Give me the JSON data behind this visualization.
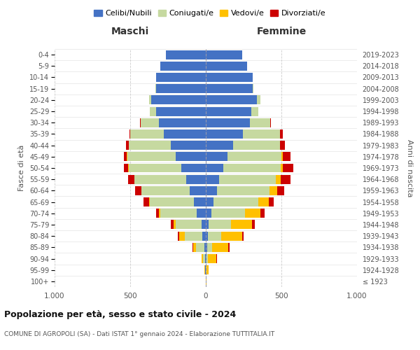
{
  "age_groups": [
    "100+",
    "95-99",
    "90-94",
    "85-89",
    "80-84",
    "75-79",
    "70-74",
    "65-69",
    "60-64",
    "55-59",
    "50-54",
    "45-49",
    "40-44",
    "35-39",
    "30-34",
    "25-29",
    "20-24",
    "15-19",
    "10-14",
    "5-9",
    "0-4"
  ],
  "birth_years": [
    "≤ 1923",
    "1924-1928",
    "1929-1933",
    "1934-1938",
    "1939-1943",
    "1944-1948",
    "1949-1953",
    "1954-1958",
    "1959-1963",
    "1964-1968",
    "1969-1973",
    "1974-1978",
    "1979-1983",
    "1984-1988",
    "1989-1993",
    "1994-1998",
    "1999-2003",
    "2004-2008",
    "2009-2013",
    "2014-2018",
    "2019-2023"
  ],
  "maschi": {
    "celibi": [
      2,
      3,
      5,
      10,
      25,
      30,
      60,
      80,
      105,
      130,
      160,
      200,
      230,
      280,
      310,
      330,
      360,
      330,
      330,
      300,
      265
    ],
    "coniugati": [
      0,
      2,
      15,
      55,
      115,
      170,
      240,
      290,
      320,
      340,
      350,
      320,
      280,
      220,
      120,
      40,
      15,
      5,
      0,
      0,
      0
    ],
    "vedovi": [
      0,
      2,
      8,
      20,
      35,
      15,
      10,
      5,
      3,
      2,
      2,
      1,
      1,
      1,
      0,
      0,
      0,
      0,
      0,
      0,
      0
    ],
    "divorziati": [
      0,
      0,
      1,
      5,
      8,
      15,
      20,
      35,
      40,
      40,
      30,
      20,
      15,
      5,
      3,
      2,
      1,
      0,
      0,
      0,
      0
    ]
  },
  "femmine": {
    "nubili": [
      2,
      2,
      5,
      8,
      15,
      20,
      35,
      50,
      75,
      90,
      115,
      145,
      180,
      245,
      290,
      300,
      340,
      310,
      310,
      275,
      240
    ],
    "coniugate": [
      0,
      2,
      10,
      35,
      85,
      145,
      225,
      295,
      345,
      375,
      380,
      355,
      310,
      245,
      135,
      45,
      20,
      5,
      0,
      0,
      0
    ],
    "vedove": [
      2,
      15,
      55,
      105,
      140,
      140,
      100,
      70,
      50,
      30,
      15,
      8,
      3,
      2,
      1,
      1,
      0,
      0,
      0,
      0,
      0
    ],
    "divorziate": [
      0,
      1,
      3,
      8,
      10,
      20,
      30,
      35,
      50,
      65,
      70,
      50,
      30,
      15,
      5,
      2,
      1,
      0,
      0,
      0,
      0
    ]
  },
  "color_celibi": "#4472c4",
  "color_coniugati": "#c6d9a0",
  "color_vedovi": "#ffc000",
  "color_divorziati": "#cc0000",
  "title1": "Popolazione per età, sesso e stato civile - 2024",
  "title2": "COMUNE DI AGROPOLI (SA) - Dati ISTAT 1° gennaio 2024 - Elaborazione TUTTITALIA.IT",
  "xlabel_left": "Maschi",
  "xlabel_right": "Femmine",
  "ylabel_left": "Fasce di età",
  "ylabel_right": "Anni di nascita",
  "xlim": 1000,
  "bg_color": "#ffffff",
  "grid_color": "#cccccc",
  "legend_labels": [
    "Celibi/Nubili",
    "Coniugati/e",
    "Vedovi/e",
    "Divorziati/e"
  ]
}
